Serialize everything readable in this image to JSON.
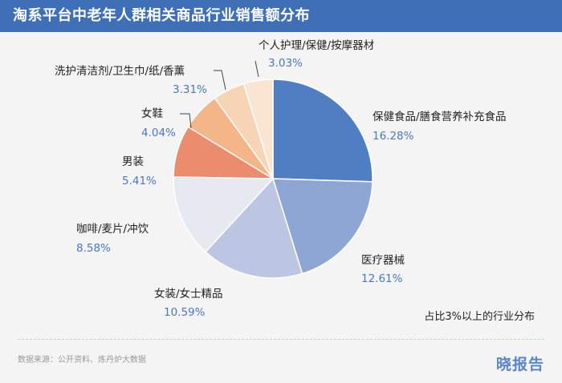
{
  "header": {
    "title": "淘系平台中老年人群相关商品行业销售额分布"
  },
  "chart_data": {
    "type": "pie",
    "title": "淘系平台中老年人群相关商品行业销售额分布",
    "note": "占比3%以上的行业分布",
    "start": "12 o'clock, clockwise",
    "slices": [
      {
        "label": "保健食品/膳食营养补充食品",
        "pct_label": "16.28%",
        "value": 16.28,
        "color": "#4f7fc2"
      },
      {
        "label": "医疗器械",
        "pct_label": "12.61%",
        "value": 12.61,
        "color": "#8ea6d3"
      },
      {
        "label": "女装/女士精品",
        "pct_label": "10.59%",
        "value": 10.59,
        "color": "#bcc6e3"
      },
      {
        "label": "咖啡/麦片/冲饮",
        "pct_label": "8.58%",
        "value": 8.58,
        "color": "#e6e9ef"
      },
      {
        "label": "男装",
        "pct_label": "5.41%",
        "value": 5.41,
        "color": "#eb8c6e"
      },
      {
        "label": "女鞋",
        "pct_label": "4.04%",
        "value": 4.04,
        "color": "#f4b589"
      },
      {
        "label": "洗护清洁剂/卫生巾/纸/香薰",
        "pct_label": "3.31%",
        "value": 3.31,
        "color": "#f8d4b6"
      },
      {
        "label": "个人护理/保健/按摩器材",
        "pct_label": "3.03%",
        "value": 3.03,
        "color": "#fae4d2"
      }
    ]
  },
  "footer": {
    "source": "数据来源：公开资料、炼丹炉大数据",
    "logo": "晓报告"
  }
}
